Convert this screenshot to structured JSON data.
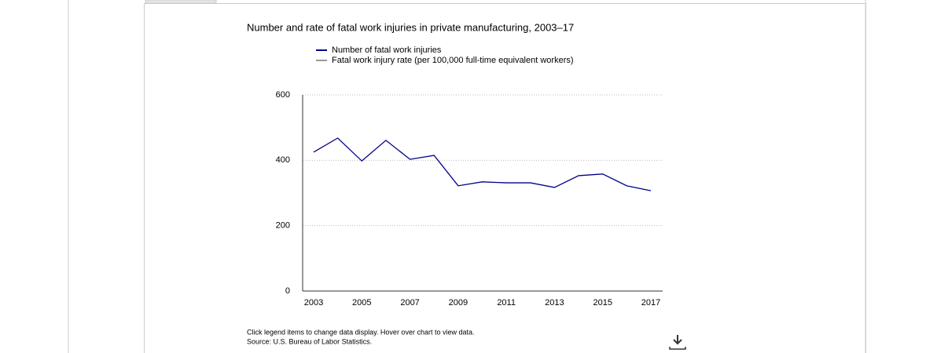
{
  "chart_data": {
    "type": "line",
    "title": "Number and rate of fatal work injuries in private manufacturing, 2003–17",
    "x": [
      2003,
      2004,
      2005,
      2006,
      2007,
      2008,
      2009,
      2010,
      2011,
      2012,
      2013,
      2014,
      2015,
      2016,
      2017
    ],
    "series": [
      {
        "name": "Number of fatal work injuries",
        "color": "#00008b",
        "values": [
          425,
          468,
          398,
          461,
          403,
          415,
          322,
          334,
          331,
          331,
          317,
          353,
          358,
          322,
          307
        ]
      },
      {
        "name": "Fatal work injury rate (per 100,000 full-time equivalent workers)",
        "color": "#999999",
        "values": [
          null,
          null,
          null,
          null,
          null,
          null,
          null,
          null,
          null,
          null,
          null,
          null,
          null,
          null,
          null
        ]
      }
    ],
    "xlim": [
      2003,
      2017
    ],
    "xticks": [
      2003,
      2005,
      2007,
      2009,
      2011,
      2013,
      2015,
      2017
    ],
    "ylim": [
      0,
      600
    ],
    "yticks": [
      0,
      200,
      400,
      600
    ],
    "grid": true,
    "notes": [
      "Click legend items to change data display. Hover over chart to view data.",
      "Source: U.S. Bureau of Labor Statistics."
    ]
  }
}
